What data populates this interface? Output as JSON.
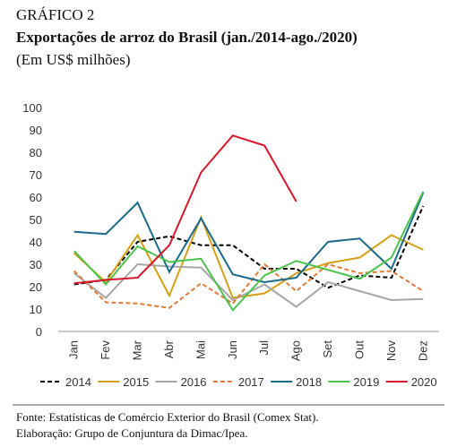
{
  "chart_data": {
    "type": "line",
    "label": "GRÁFICO 2",
    "title": "Exportações de arroz do Brasil (jan./2014-ago./2020)",
    "subtitle": "(Em US$ milhões)",
    "categories": [
      "Jan",
      "Fev",
      "Mar",
      "Abr",
      "Mai",
      "Jun",
      "Jul",
      "Ago",
      "Set",
      "Out",
      "Nov",
      "Dez"
    ],
    "ylim": [
      0,
      100
    ],
    "yticks": [
      0,
      10,
      20,
      30,
      40,
      50,
      60,
      70,
      80,
      90,
      100
    ],
    "legend": "bottom",
    "series": [
      {
        "name": "2014",
        "color": "#000000",
        "dashed": true,
        "values": [
          21,
          23,
          40,
          42.5,
          38.5,
          38.5,
          28,
          28,
          19.5,
          25,
          24,
          56
        ]
      },
      {
        "name": "2015",
        "color": "#d4a017",
        "dashed": false,
        "values": [
          35,
          22,
          43,
          16,
          51,
          15,
          17,
          26,
          30.5,
          33,
          43,
          36.5
        ]
      },
      {
        "name": "2016",
        "color": "#a6a6a6",
        "dashed": false,
        "values": [
          26,
          15,
          30,
          29,
          28.5,
          14,
          21,
          11,
          22,
          18,
          14,
          14.5
        ]
      },
      {
        "name": "2017",
        "color": "#e07b39",
        "dashed": true,
        "values": [
          27,
          13,
          12.5,
          10.5,
          21.5,
          12.5,
          30,
          18,
          30,
          26,
          27,
          18
        ]
      },
      {
        "name": "2018",
        "color": "#1a6b8a",
        "dashed": false,
        "values": [
          44.5,
          43.5,
          57.5,
          26.5,
          50.5,
          25.5,
          22,
          24,
          40,
          41.5,
          28,
          62
        ]
      },
      {
        "name": "2019",
        "color": "#4cc34c",
        "dashed": false,
        "values": [
          36,
          21,
          38,
          31,
          32.5,
          9.5,
          25,
          31.5,
          27.5,
          23.5,
          33,
          62.5
        ]
      },
      {
        "name": "2020",
        "color": "#d7192b",
        "dashed": false,
        "values": [
          21.5,
          23,
          24,
          38.5,
          71,
          87.5,
          83,
          58,
          null,
          null,
          null,
          null
        ]
      }
    ],
    "notes": [
      "Fonte: Estatísticas de Comércio Exterior do Brasil (Comex Stat).",
      "Elaboração: Grupo de Conjuntura da Dimac/Ipea."
    ]
  }
}
